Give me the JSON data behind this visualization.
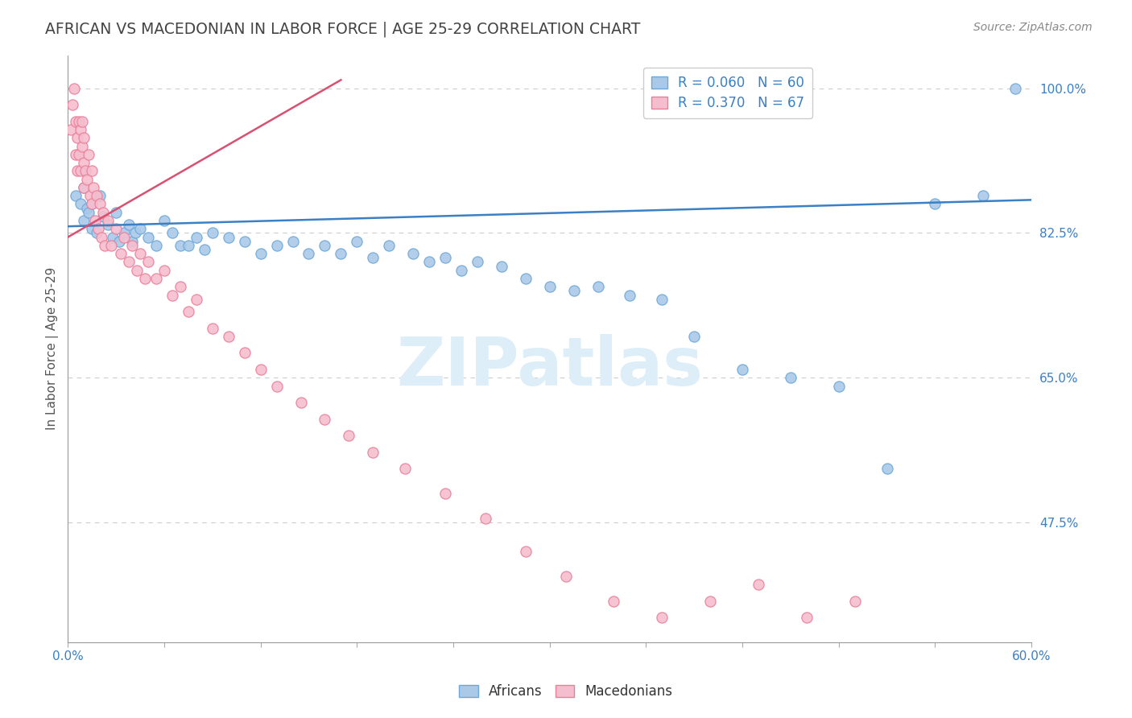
{
  "title": "AFRICAN VS MACEDONIAN IN LABOR FORCE | AGE 25-29 CORRELATION CHART",
  "source_text": "Source: ZipAtlas.com",
  "ylabel": "In Labor Force | Age 25-29",
  "xlim": [
    0.0,
    0.6
  ],
  "ylim": [
    0.33,
    1.04
  ],
  "xtick_positions": [
    0.0,
    0.06,
    0.12,
    0.18,
    0.24,
    0.3,
    0.36,
    0.42,
    0.48,
    0.54,
    0.6
  ],
  "yticks_right": [
    1.0,
    0.825,
    0.65,
    0.475
  ],
  "yticklabels_right": [
    "100.0%",
    "82.5%",
    "65.0%",
    "47.5%"
  ],
  "african_color": "#aac9e8",
  "african_edge": "#6ea8d8",
  "macedonian_color": "#f5bece",
  "macedonian_edge": "#e8809a",
  "trendline_african_color": "#3b7fc4",
  "trendline_macedonian_color": "#d95070",
  "watermark_color": "#ddeef8",
  "background_color": "#ffffff",
  "grid_color": "#cccccc",
  "title_color": "#444444",
  "tick_color": "#3b7fc4",
  "source_color": "#888888",
  "ylabel_color": "#555555",
  "african_x": [
    0.005,
    0.008,
    0.01,
    0.01,
    0.012,
    0.013,
    0.015,
    0.015,
    0.018,
    0.02,
    0.022,
    0.025,
    0.028,
    0.03,
    0.032,
    0.035,
    0.038,
    0.04,
    0.042,
    0.045,
    0.05,
    0.055,
    0.06,
    0.065,
    0.07,
    0.075,
    0.08,
    0.085,
    0.09,
    0.1,
    0.11,
    0.12,
    0.13,
    0.14,
    0.15,
    0.16,
    0.17,
    0.18,
    0.19,
    0.2,
    0.215,
    0.225,
    0.235,
    0.245,
    0.255,
    0.27,
    0.285,
    0.3,
    0.315,
    0.33,
    0.35,
    0.37,
    0.39,
    0.42,
    0.45,
    0.48,
    0.51,
    0.54,
    0.57,
    0.59
  ],
  "african_y": [
    0.87,
    0.86,
    0.84,
    0.88,
    0.855,
    0.85,
    0.83,
    0.86,
    0.825,
    0.87,
    0.845,
    0.835,
    0.82,
    0.85,
    0.815,
    0.825,
    0.835,
    0.815,
    0.825,
    0.83,
    0.82,
    0.81,
    0.84,
    0.825,
    0.81,
    0.81,
    0.82,
    0.805,
    0.825,
    0.82,
    0.815,
    0.8,
    0.81,
    0.815,
    0.8,
    0.81,
    0.8,
    0.815,
    0.795,
    0.81,
    0.8,
    0.79,
    0.795,
    0.78,
    0.79,
    0.785,
    0.77,
    0.76,
    0.755,
    0.76,
    0.75,
    0.745,
    0.7,
    0.66,
    0.65,
    0.64,
    0.54,
    0.86,
    0.87,
    1.0
  ],
  "macedonian_x": [
    0.002,
    0.003,
    0.004,
    0.005,
    0.005,
    0.006,
    0.006,
    0.007,
    0.007,
    0.008,
    0.008,
    0.009,
    0.009,
    0.01,
    0.01,
    0.01,
    0.011,
    0.012,
    0.013,
    0.014,
    0.015,
    0.015,
    0.016,
    0.017,
    0.018,
    0.019,
    0.02,
    0.021,
    0.022,
    0.023,
    0.025,
    0.027,
    0.03,
    0.033,
    0.035,
    0.038,
    0.04,
    0.043,
    0.045,
    0.048,
    0.05,
    0.055,
    0.06,
    0.065,
    0.07,
    0.075,
    0.08,
    0.09,
    0.1,
    0.11,
    0.12,
    0.13,
    0.145,
    0.16,
    0.175,
    0.19,
    0.21,
    0.235,
    0.26,
    0.285,
    0.31,
    0.34,
    0.37,
    0.4,
    0.43,
    0.46,
    0.49
  ],
  "macedonian_y": [
    0.95,
    0.98,
    1.0,
    0.92,
    0.96,
    0.94,
    0.9,
    0.96,
    0.92,
    0.95,
    0.9,
    0.93,
    0.96,
    0.88,
    0.91,
    0.94,
    0.9,
    0.89,
    0.92,
    0.87,
    0.9,
    0.86,
    0.88,
    0.84,
    0.87,
    0.83,
    0.86,
    0.82,
    0.85,
    0.81,
    0.84,
    0.81,
    0.83,
    0.8,
    0.82,
    0.79,
    0.81,
    0.78,
    0.8,
    0.77,
    0.79,
    0.77,
    0.78,
    0.75,
    0.76,
    0.73,
    0.745,
    0.71,
    0.7,
    0.68,
    0.66,
    0.64,
    0.62,
    0.6,
    0.58,
    0.56,
    0.54,
    0.51,
    0.48,
    0.44,
    0.41,
    0.38,
    0.36,
    0.38,
    0.4,
    0.36,
    0.38
  ],
  "african_trend": [
    0.0,
    0.6,
    0.833,
    0.865
  ],
  "macedonian_trend": [
    0.0,
    0.17,
    0.82,
    1.01
  ],
  "legend_labels": [
    "R = 0.060   N = 60",
    "R = 0.370   N = 67"
  ],
  "bottom_legend_labels": [
    "Africans",
    "Macedonians"
  ]
}
